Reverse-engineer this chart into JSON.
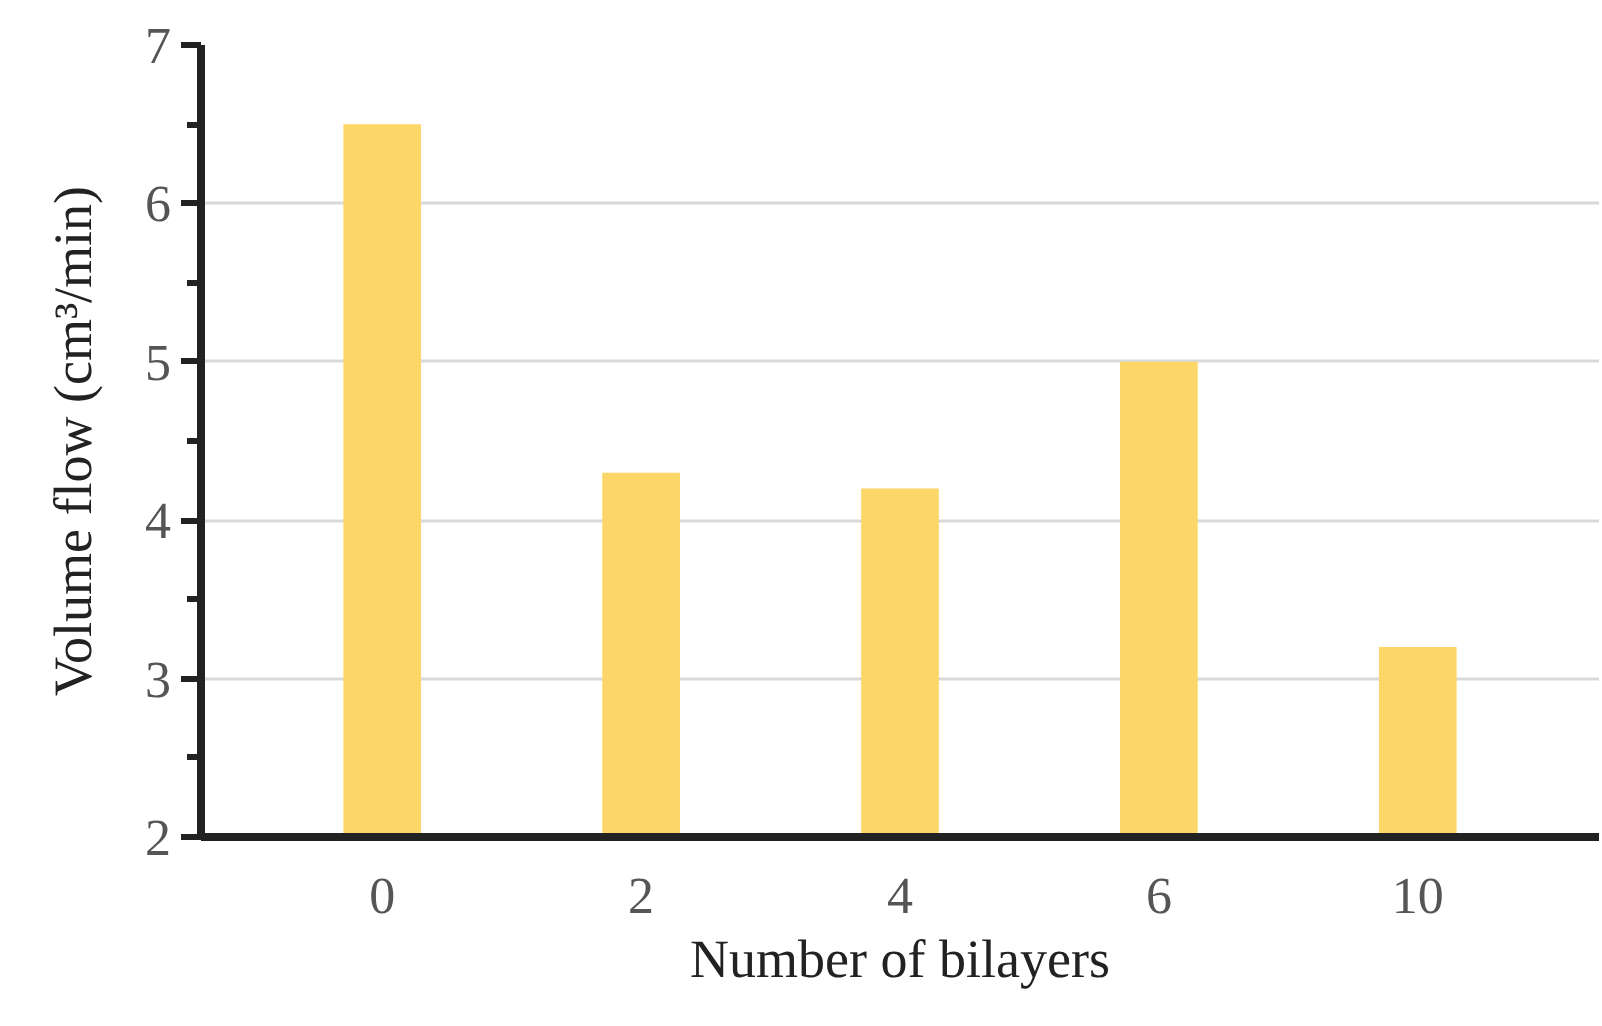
{
  "chart_data": {
    "type": "bar",
    "xlabel": "Number of bilayers",
    "ylabel": "Volume flow (cm³/min)",
    "categories": [
      "0",
      "2",
      "4",
      "6",
      "10"
    ],
    "values": [
      6.5,
      4.3,
      4.2,
      5.0,
      3.2
    ],
    "color": "#fcd667",
    "ylim": [
      2,
      7
    ],
    "yticks": [
      2,
      {
        "value": 2.5,
        "label": null
      },
      3,
      {
        "value": 3.5,
        "label": null
      },
      4,
      {
        "value": 4.5,
        "label": null
      },
      5,
      {
        "value": 5.5,
        "label": null
      },
      6,
      {
        "value": 6.5,
        "label": null
      },
      7
    ],
    "grid": "y"
  }
}
